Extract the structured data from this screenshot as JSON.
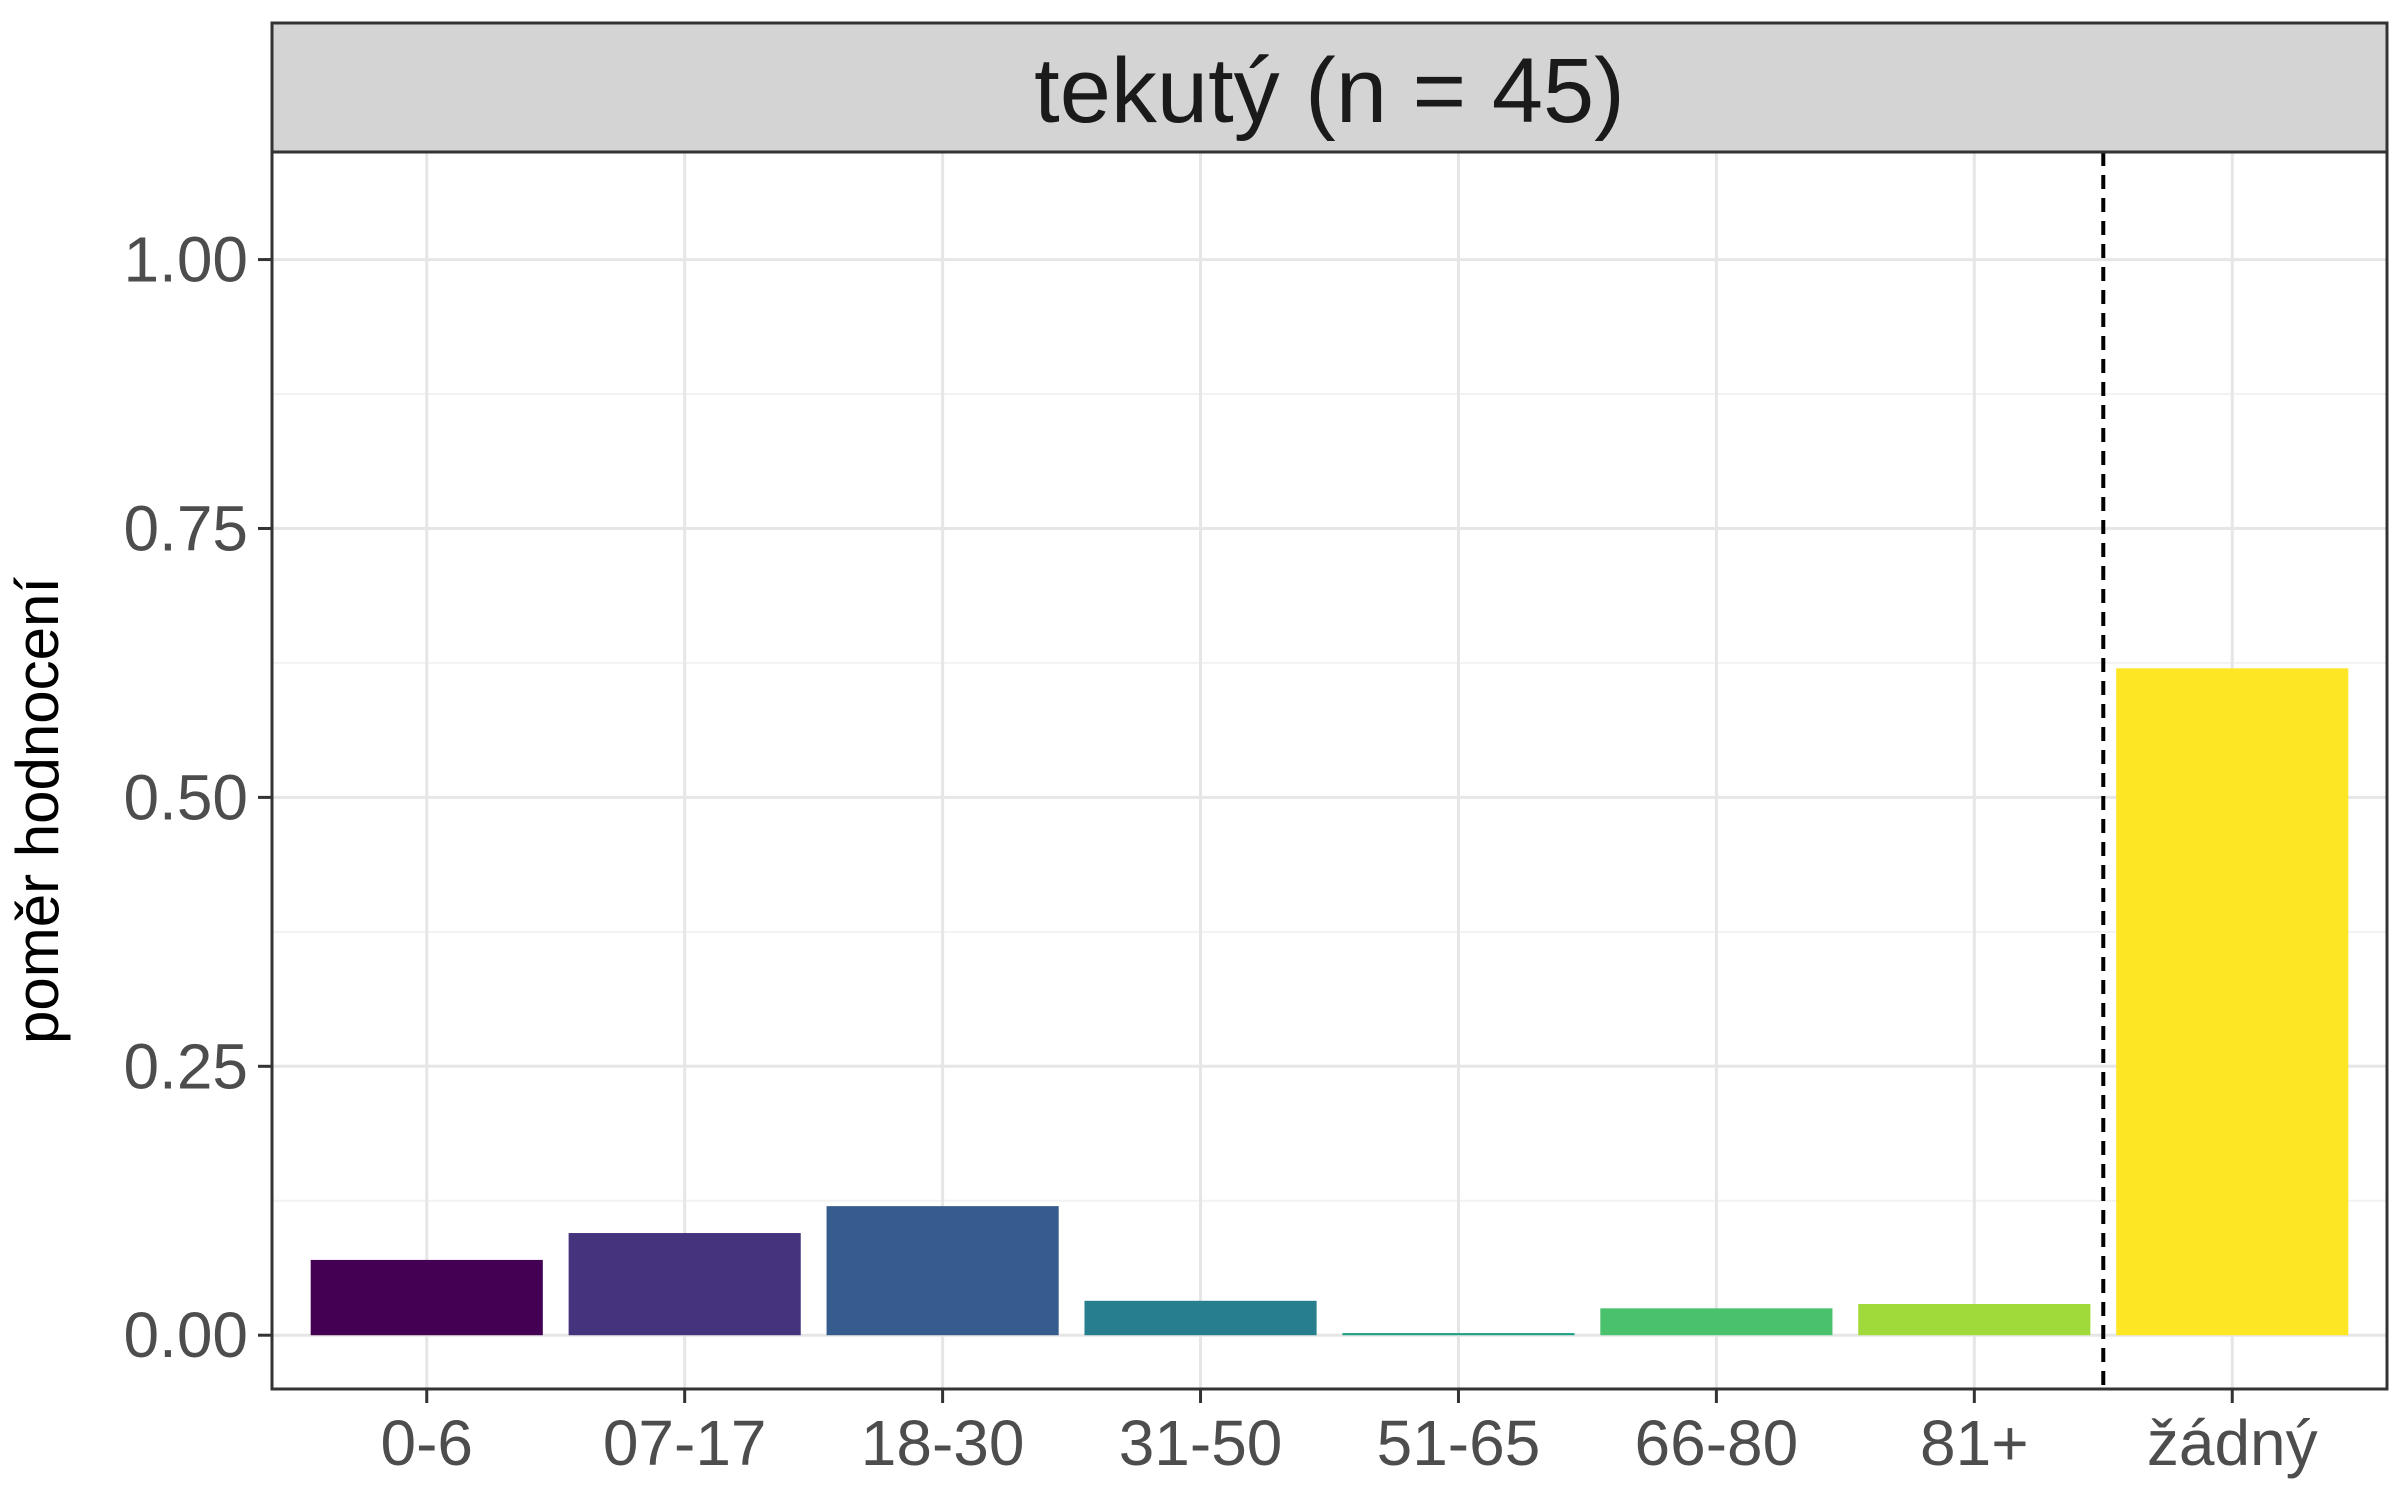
{
  "chart_data": {
    "type": "bar",
    "facet_title": "tekutý (n = 45)",
    "title": "",
    "xlabel": "",
    "ylabel": "poměr hodnocení",
    "categories": [
      "0-6",
      "07-17",
      "18-30",
      "31-50",
      "51-65",
      "66-80",
      "81+",
      "žádný"
    ],
    "values": [
      0.07,
      0.095,
      0.12,
      0.032,
      0.002,
      0.025,
      0.029,
      0.62
    ],
    "colors": [
      "#440154",
      "#46337E",
      "#365C8D",
      "#277F8E",
      "#1FA187",
      "#4AC16D",
      "#9FDA3A",
      "#FDE725"
    ],
    "ylim": [
      -0.05,
      1.1
    ],
    "yticks": [
      0,
      0.25,
      0.5,
      0.75,
      1
    ],
    "ytick_labels": [
      "0.00",
      "0.25",
      "0.50",
      "0.75",
      "1.00"
    ],
    "reference_line": {
      "after_category_index": 6,
      "style": "dashed",
      "color": "#000000"
    },
    "grid": true,
    "legend": "none",
    "theme": {
      "panel_border": "#333333",
      "grid_major": "#e6e6e6",
      "grid_minor": "#f2f2f2",
      "strip_fill": "#d4d4d4",
      "strip_border": "#333333"
    }
  }
}
